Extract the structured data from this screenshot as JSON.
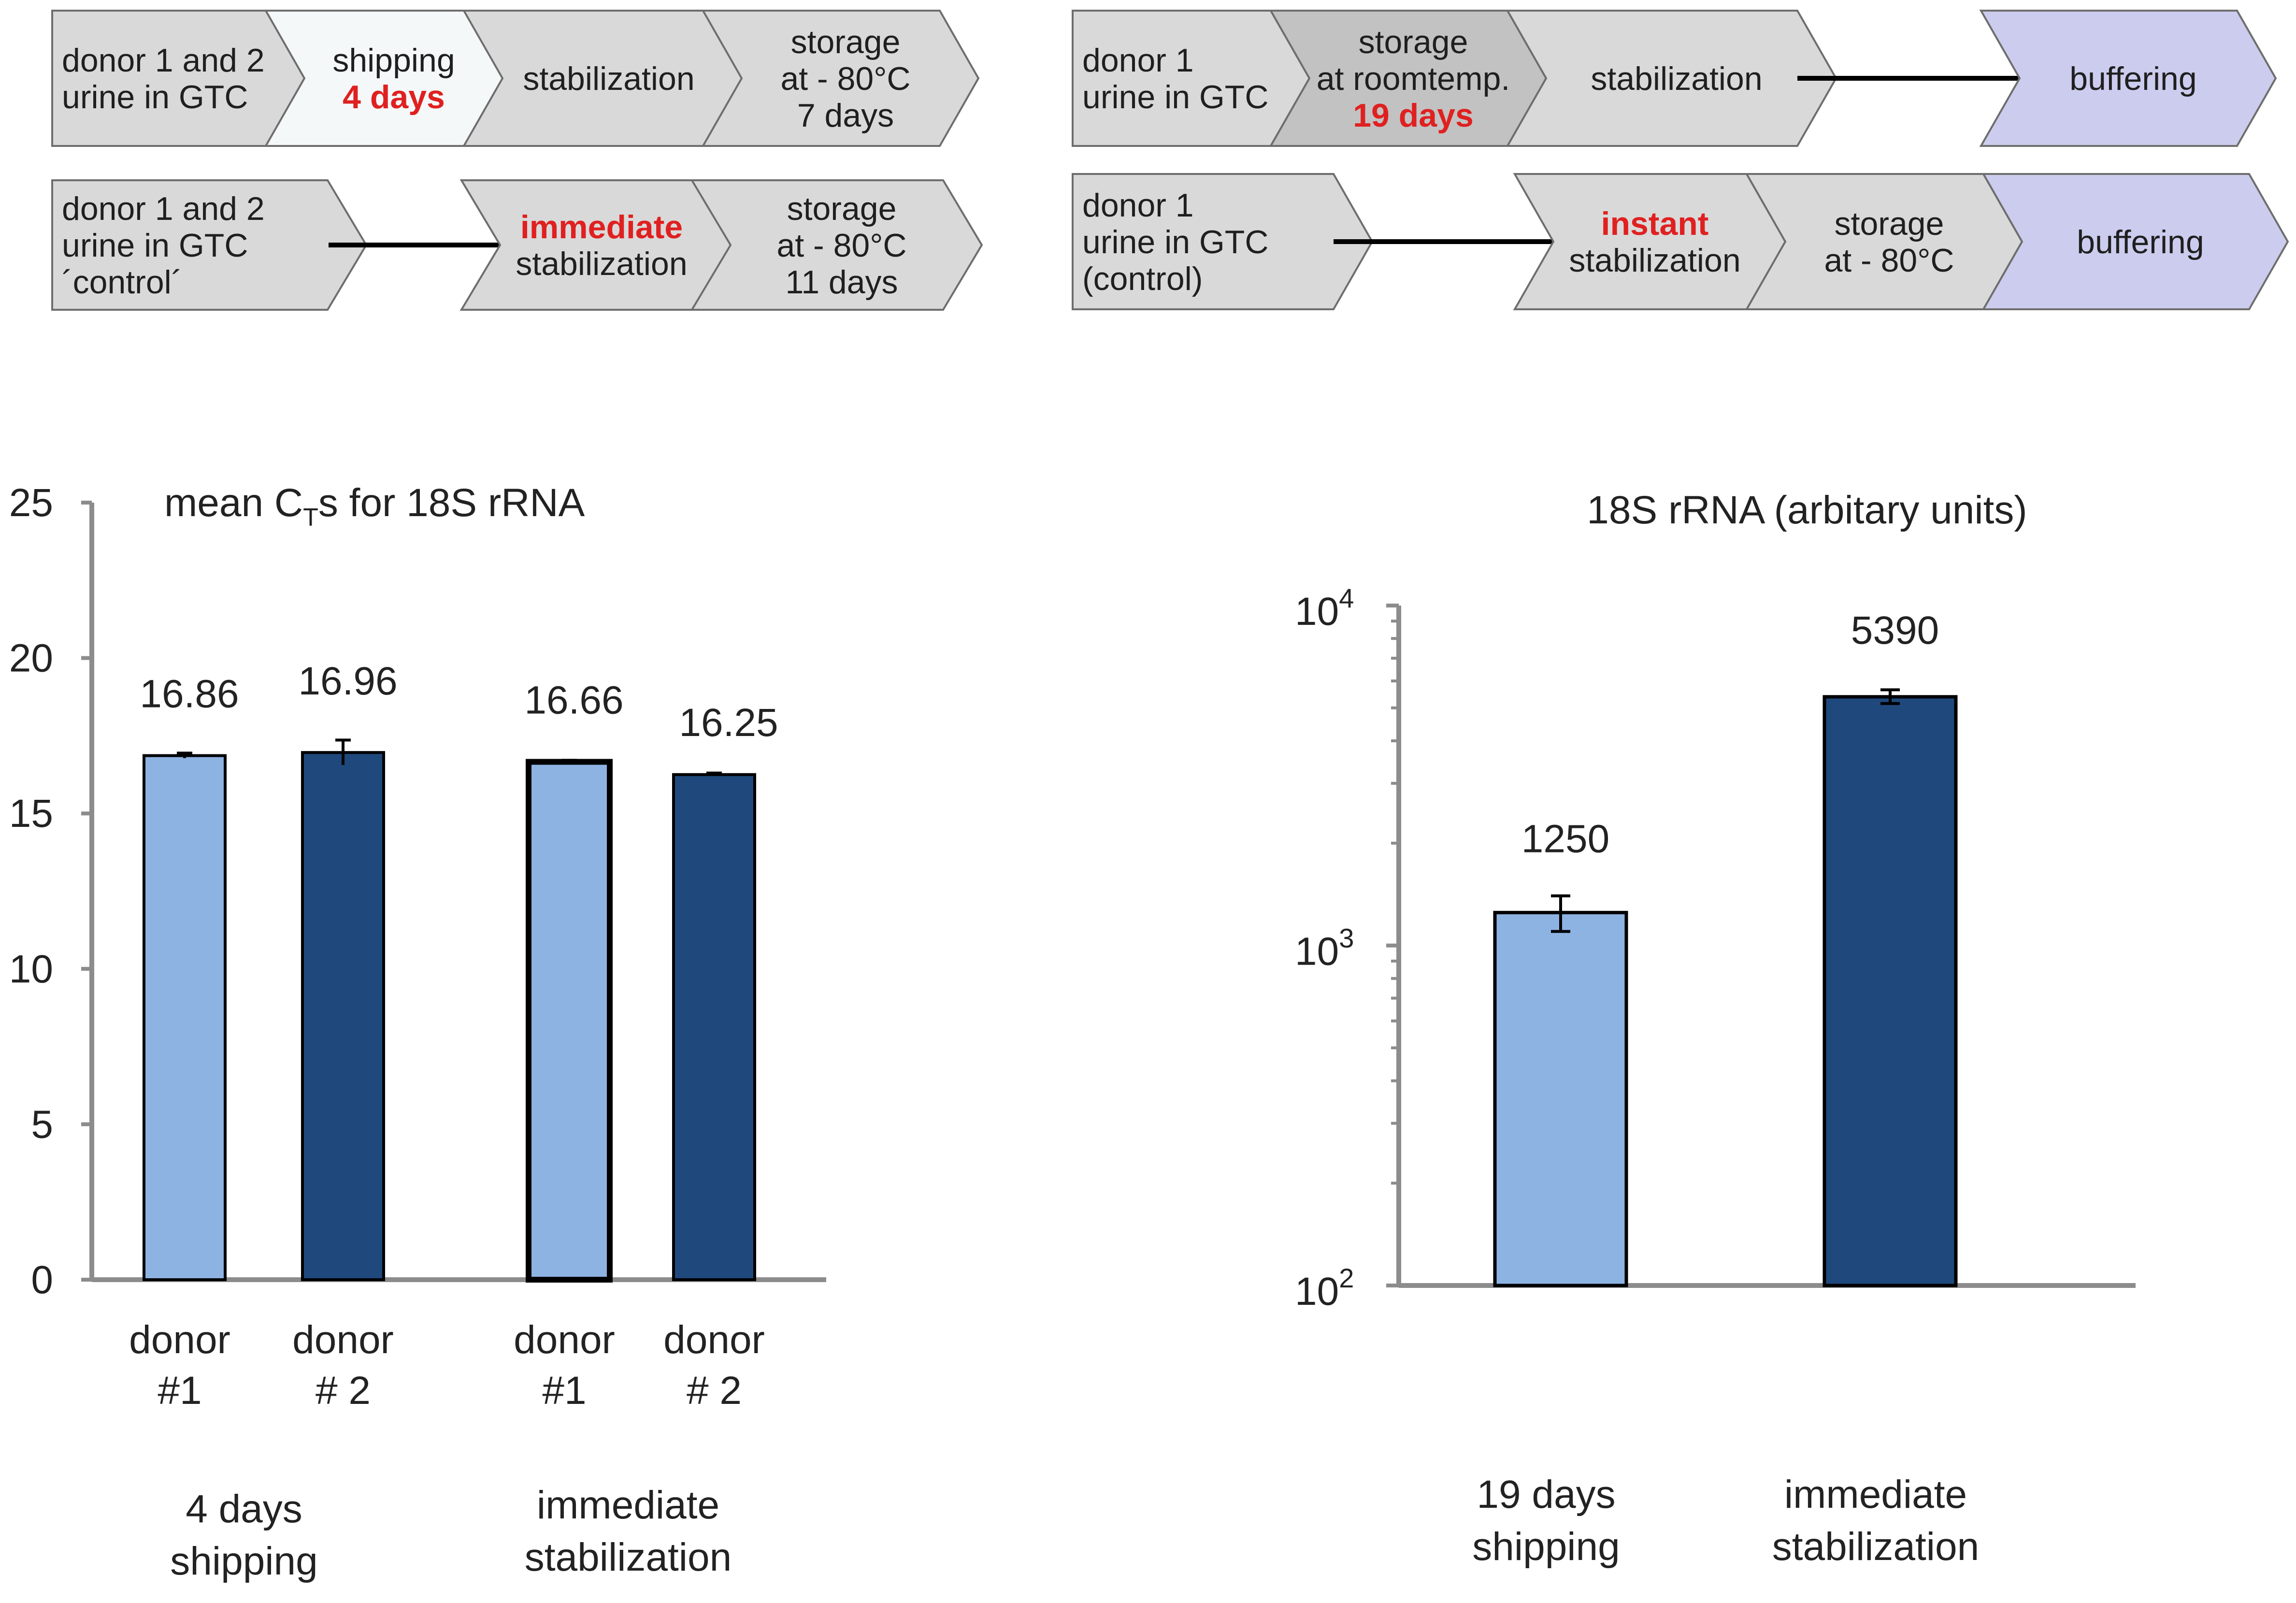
{
  "colors": {
    "chevron_fill": "#d9d9d9",
    "chevron_light_fill": "#f4f8f9",
    "chevron_dark_fill": "#c2c2c2",
    "chevron_purple_fill": "#ccccee",
    "chevron_stroke": "#6e6e6e",
    "highlight_red": "#e02020",
    "light_bar": "#8db3e2",
    "dark_bar": "#1f497d",
    "axis": "#8c8c8c"
  },
  "workflow_left": {
    "row1": [
      {
        "lines": [
          "donor 1 and 2",
          "urine in GTC"
        ],
        "fill": "gray"
      },
      {
        "lines": [
          "shipping",
          "4 days"
        ],
        "red_line": 1,
        "fill": "light"
      },
      {
        "lines": [
          "stabilization"
        ],
        "fill": "gray"
      },
      {
        "lines": [
          "storage",
          "at - 80°C",
          "7 days"
        ],
        "fill": "gray"
      }
    ],
    "row2": [
      {
        "lines": [
          "donor 1 and 2",
          "urine in GTC",
          "´control´"
        ],
        "fill": "gray"
      },
      {
        "lines": [
          "immediate",
          "stabilization"
        ],
        "red_line": 0,
        "fill": "gray"
      },
      {
        "lines": [
          "storage",
          "at - 80°C",
          "11 days"
        ],
        "fill": "gray"
      }
    ]
  },
  "workflow_right": {
    "row1": [
      {
        "lines": [
          "donor 1",
          "urine in GTC"
        ],
        "fill": "gray"
      },
      {
        "lines": [
          "storage",
          "at roomtemp.",
          "19 days"
        ],
        "red_line": 2,
        "fill": "dark"
      },
      {
        "lines": [
          "stabilization"
        ],
        "fill": "gray"
      },
      {
        "lines": [
          "buffering"
        ],
        "fill": "purple"
      }
    ],
    "row2": [
      {
        "lines": [
          "donor 1",
          "urine in GTC",
          "(control)"
        ],
        "fill": "gray"
      },
      {
        "lines": [
          "instant",
          "stabilization"
        ],
        "red_line": 0,
        "fill": "gray"
      },
      {
        "lines": [
          "storage",
          "at - 80°C"
        ],
        "fill": "gray"
      },
      {
        "lines": [
          "buffering"
        ],
        "fill": "purple"
      }
    ]
  },
  "chart_data": [
    {
      "type": "bar",
      "title_main": "mean  C",
      "title_sub": "T",
      "title_rest": "s for 18S rRNA",
      "yscale": "linear",
      "ylim": [
        0,
        25
      ],
      "yticks": [
        0,
        5,
        10,
        15,
        20,
        25
      ],
      "grid": false,
      "categories": [
        "donor #1",
        "donor # 2",
        "donor #1",
        "donor # 2"
      ],
      "category_lines": [
        [
          "donor",
          "#1"
        ],
        [
          "donor",
          "# 2"
        ],
        [
          "donor",
          "#1"
        ],
        [
          "donor",
          "# 2"
        ]
      ],
      "groups": [
        {
          "lines": [
            "4 days",
            "shipping"
          ]
        },
        {
          "lines": [
            "immediate",
            "stabilization"
          ]
        }
      ],
      "bars": [
        {
          "value": 16.86,
          "label": "16.86",
          "error": 0.08,
          "color": "light",
          "group": 0
        },
        {
          "value": 16.96,
          "label": "16.96",
          "error": 0.4,
          "color": "dark",
          "group": 0
        },
        {
          "value": 16.66,
          "label": "16.66",
          "error": 0.05,
          "color": "light",
          "group": 1
        },
        {
          "value": 16.25,
          "label": "16.25",
          "error": 0.05,
          "color": "dark",
          "group": 1
        }
      ]
    },
    {
      "type": "bar",
      "title": "18S rRNA  (arbitary units)",
      "yscale": "log",
      "ylim": [
        100,
        10000
      ],
      "yticks": [
        100,
        1000,
        10000
      ],
      "ytick_labels": [
        {
          "base": "10",
          "exp": "2"
        },
        {
          "base": "10",
          "exp": "3"
        },
        {
          "base": "10",
          "exp": "4"
        }
      ],
      "grid": false,
      "categories": [
        "19 days shipping",
        "immediate stabilization"
      ],
      "category_lines": [
        [
          "19 days",
          "shipping"
        ],
        [
          "immediate",
          "stabilization"
        ]
      ],
      "bars": [
        {
          "value": 1250,
          "label": "1250",
          "error_low": 1100,
          "error_high": 1400,
          "color": "light"
        },
        {
          "value": 5390,
          "label": "5390",
          "error_low": 5150,
          "error_high": 5650,
          "color": "dark"
        }
      ]
    }
  ]
}
